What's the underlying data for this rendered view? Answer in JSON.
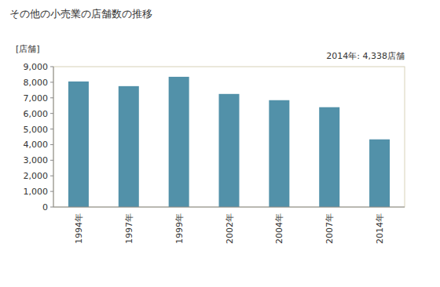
{
  "chart_data": {
    "type": "bar",
    "title": "その他の小売業の店舗数の推移",
    "y_label": "[店舗]",
    "annotation": "2014年: 4,338店舗",
    "categories": [
      "1994年",
      "1997年",
      "1999年",
      "2002年",
      "2004年",
      "2007年",
      "2014年"
    ],
    "values": [
      8050,
      7750,
      8350,
      7250,
      6850,
      6400,
      4338
    ],
    "color": "#5291a9",
    "ylim": [
      0,
      9000
    ],
    "yticks": [
      0,
      {
        "value": 1000,
        "label": "1,000"
      },
      {
        "value": 2000,
        "label": "2,000"
      },
      {
        "value": 3000,
        "label": "3,000"
      },
      {
        "value": 4000,
        "label": "4,000"
      },
      {
        "value": 5000,
        "label": "5,000"
      },
      {
        "value": 6000,
        "label": "6,000"
      },
      {
        "value": 7000,
        "label": "7,000"
      },
      {
        "value": 8000,
        "label": "8,000"
      },
      {
        "value": 9000,
        "label": "9,000"
      }
    ],
    "grid": false
  }
}
